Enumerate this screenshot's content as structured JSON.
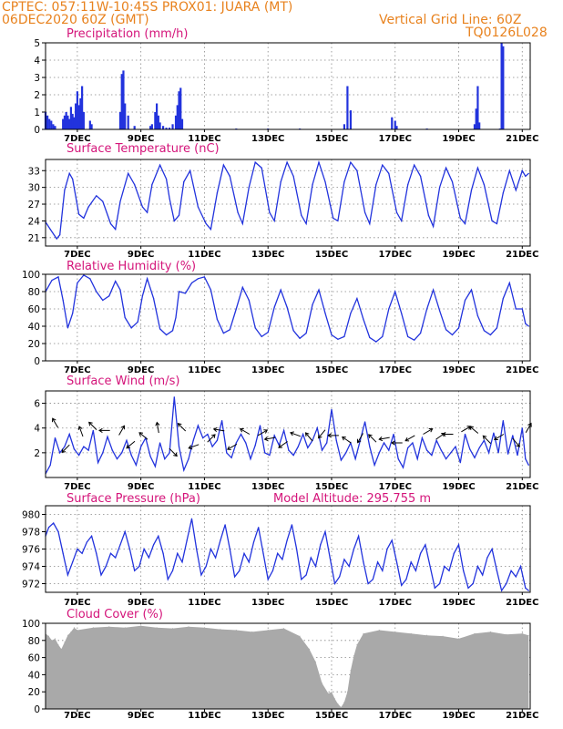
{
  "header": {
    "line1": "CPTEC:   057:11W-10:45S   PROX01: JUARA (MT)",
    "line2": "06DEC2020 60Z (GMT)",
    "grid_note": "Vertical Grid Line: 60Z",
    "model_code": "TQ0126L028"
  },
  "colors": {
    "series": "#2233dd",
    "cloud": "#a9a9a9",
    "title": "#d4147a",
    "header": "#e8821e"
  },
  "x_tick_labels": [
    "7DEC",
    "9DEC",
    "11DEC",
    "13DEC",
    "15DEC",
    "17DEC",
    "19DEC",
    "21DEC"
  ],
  "chart_data": [
    {
      "id": "precip",
      "type": "bar",
      "title": "Precipitation (mm/h)",
      "x_unit": "days since 06DEC2020 00Z",
      "xlim": [
        0,
        15.25
      ],
      "ylim": [
        0,
        5
      ],
      "yticks": [
        0,
        1,
        2,
        3,
        4,
        5
      ],
      "x": [
        0.0,
        0.06,
        0.12,
        0.18,
        0.24,
        0.3,
        0.55,
        0.6,
        0.65,
        0.7,
        0.75,
        0.8,
        0.85,
        0.9,
        0.95,
        1.0,
        1.05,
        1.1,
        1.15,
        1.2,
        1.4,
        1.45,
        2.35,
        2.4,
        2.45,
        2.5,
        2.6,
        2.8,
        3.3,
        3.35,
        3.45,
        3.5,
        3.55,
        3.6,
        3.7,
        3.8,
        3.9,
        4.0,
        4.1,
        4.15,
        4.2,
        4.25,
        4.3,
        6.0,
        7.0,
        8.0,
        9.4,
        9.5,
        9.6,
        10.9,
        11.0,
        11.05,
        12.0,
        13.5,
        13.55,
        13.6,
        13.65,
        14.3,
        14.35,
        14.4
      ],
      "values": [
        1.0,
        0.8,
        0.6,
        0.5,
        0.3,
        0.2,
        0.6,
        0.8,
        1.0,
        0.8,
        0.6,
        1.3,
        0.9,
        0.7,
        1.5,
        2.2,
        1.4,
        1.8,
        2.5,
        1.0,
        0.5,
        0.3,
        1.0,
        3.2,
        3.4,
        1.5,
        0.8,
        0.2,
        0.2,
        0.3,
        1.0,
        1.5,
        0.8,
        0.4,
        0.2,
        0.1,
        0.1,
        0.3,
        0.8,
        1.4,
        2.2,
        2.4,
        0.6,
        0.05,
        0.05,
        0.05,
        0.3,
        2.5,
        1.1,
        0.7,
        0.5,
        0.2,
        0.05,
        0.3,
        1.2,
        2.5,
        0.4,
        0.05,
        5.0,
        4.8
      ]
    },
    {
      "id": "temp",
      "type": "line",
      "title": "Surface Temperature (nC)",
      "xlim": [
        0,
        15.25
      ],
      "ylim": [
        19.5,
        35
      ],
      "yticks": [
        21,
        24,
        27,
        30,
        33
      ],
      "x": [
        0,
        0.15,
        0.35,
        0.45,
        0.6,
        0.75,
        0.85,
        1.05,
        1.2,
        1.35,
        1.6,
        1.8,
        2.05,
        2.2,
        2.35,
        2.6,
        2.8,
        3.05,
        3.2,
        3.35,
        3.6,
        3.8,
        3.9,
        4.05,
        4.2,
        4.35,
        4.55,
        4.8,
        5.05,
        5.2,
        5.4,
        5.6,
        5.8,
        6.05,
        6.2,
        6.4,
        6.6,
        6.8,
        7.05,
        7.2,
        7.4,
        7.6,
        7.8,
        8.05,
        8.2,
        8.4,
        8.6,
        8.8,
        9.05,
        9.2,
        9.4,
        9.6,
        9.8,
        10.05,
        10.2,
        10.4,
        10.6,
        10.8,
        11.05,
        11.2,
        11.4,
        11.6,
        11.8,
        12.05,
        12.2,
        12.4,
        12.6,
        12.8,
        13.05,
        13.2,
        13.4,
        13.6,
        13.8,
        14.05,
        14.2,
        14.4,
        14.6,
        14.8,
        15.0,
        15.1,
        15.2
      ],
      "values": [
        23.8,
        22.5,
        20.8,
        21.5,
        29.5,
        32.5,
        31.5,
        25.2,
        24.5,
        26.5,
        28.5,
        27.5,
        23.5,
        22.5,
        27.5,
        32.5,
        30.5,
        26.5,
        25.5,
        30.5,
        34.0,
        31.5,
        28.0,
        24.0,
        25.0,
        31.0,
        33.0,
        26.5,
        23.5,
        22.5,
        29.0,
        34.0,
        32.0,
        25.5,
        23.5,
        30.0,
        34.5,
        33.5,
        25.5,
        24.0,
        31.0,
        34.5,
        32.0,
        25.0,
        23.5,
        30.5,
        34.5,
        31.0,
        24.5,
        24.0,
        31.0,
        34.5,
        33.0,
        25.5,
        23.5,
        30.5,
        34.0,
        32.5,
        25.5,
        24.0,
        30.5,
        34.0,
        32.0,
        25.0,
        23.0,
        30.0,
        33.5,
        31.0,
        24.5,
        23.5,
        29.5,
        33.5,
        30.5,
        24.0,
        23.5,
        29.0,
        33.0,
        29.5,
        33.0,
        32.0,
        32.5
      ]
    },
    {
      "id": "rh",
      "type": "line",
      "title": "Relative Humidity (%)",
      "xlim": [
        0,
        15.25
      ],
      "ylim": [
        0,
        100
      ],
      "yticks": [
        0,
        20,
        40,
        60,
        80,
        100
      ],
      "x": [
        0,
        0.2,
        0.4,
        0.55,
        0.7,
        0.85,
        1.0,
        1.2,
        1.4,
        1.6,
        1.8,
        2.0,
        2.2,
        2.35,
        2.5,
        2.7,
        2.9,
        3.05,
        3.2,
        3.4,
        3.6,
        3.8,
        4.0,
        4.1,
        4.2,
        4.4,
        4.6,
        4.8,
        5.0,
        5.2,
        5.4,
        5.6,
        5.8,
        6.0,
        6.2,
        6.4,
        6.6,
        6.8,
        7.0,
        7.2,
        7.4,
        7.6,
        7.8,
        8.0,
        8.2,
        8.4,
        8.6,
        8.8,
        9.0,
        9.2,
        9.4,
        9.6,
        9.8,
        10.0,
        10.2,
        10.4,
        10.6,
        10.8,
        11.0,
        11.2,
        11.4,
        11.6,
        11.8,
        12.0,
        12.2,
        12.4,
        12.6,
        12.8,
        13.0,
        13.2,
        13.4,
        13.6,
        13.8,
        14.0,
        14.2,
        14.4,
        14.6,
        14.8,
        15.0,
        15.1,
        15.2
      ],
      "values": [
        80,
        93,
        97,
        70,
        38,
        55,
        90,
        99,
        95,
        80,
        70,
        75,
        92,
        82,
        50,
        38,
        45,
        75,
        95,
        72,
        37,
        30,
        35,
        50,
        80,
        78,
        90,
        95,
        97,
        82,
        48,
        32,
        36,
        60,
        85,
        70,
        38,
        28,
        33,
        62,
        82,
        62,
        35,
        26,
        32,
        65,
        82,
        55,
        30,
        25,
        28,
        55,
        72,
        48,
        27,
        22,
        28,
        60,
        80,
        55,
        28,
        24,
        32,
        60,
        82,
        58,
        36,
        30,
        38,
        70,
        82,
        52,
        35,
        30,
        38,
        72,
        90,
        60,
        60,
        43,
        40
      ]
    },
    {
      "id": "wind",
      "type": "line",
      "title": "Surface Wind (m/s)",
      "xlim": [
        0,
        15.25
      ],
      "ylim": [
        0,
        7
      ],
      "yticks": [
        2,
        4,
        6
      ],
      "x": [
        0,
        0.15,
        0.3,
        0.45,
        0.6,
        0.75,
        0.9,
        1.05,
        1.2,
        1.35,
        1.5,
        1.65,
        1.8,
        1.95,
        2.1,
        2.25,
        2.4,
        2.55,
        2.7,
        2.85,
        3.0,
        3.15,
        3.3,
        3.45,
        3.6,
        3.75,
        3.9,
        4.05,
        4.2,
        4.35,
        4.5,
        4.65,
        4.8,
        4.95,
        5.1,
        5.25,
        5.4,
        5.55,
        5.7,
        5.85,
        6.0,
        6.15,
        6.3,
        6.45,
        6.6,
        6.75,
        6.9,
        7.05,
        7.2,
        7.35,
        7.5,
        7.65,
        7.8,
        7.95,
        8.1,
        8.25,
        8.4,
        8.55,
        8.7,
        8.85,
        9.0,
        9.15,
        9.3,
        9.45,
        9.6,
        9.75,
        9.9,
        10.05,
        10.2,
        10.35,
        10.5,
        10.65,
        10.8,
        10.95,
        11.1,
        11.25,
        11.4,
        11.55,
        11.7,
        11.85,
        12.0,
        12.15,
        12.3,
        12.45,
        12.6,
        12.75,
        12.9,
        13.05,
        13.2,
        13.35,
        13.5,
        13.65,
        13.8,
        13.95,
        14.1,
        14.25,
        14.4,
        14.55,
        14.7,
        14.85,
        15.0,
        15.1,
        15.2
      ],
      "values": [
        0.3,
        1.0,
        3.2,
        2.0,
        2.5,
        3.5,
        2.3,
        1.8,
        2.5,
        2.2,
        3.8,
        1.2,
        2.0,
        3.3,
        2.2,
        1.5,
        2.0,
        3.0,
        1.8,
        1.0,
        2.5,
        3.2,
        1.7,
        0.9,
        2.8,
        1.5,
        2.0,
        6.5,
        2.5,
        0.6,
        1.5,
        3.0,
        4.2,
        3.2,
        3.5,
        2.5,
        3.0,
        4.6,
        2.0,
        1.6,
        2.8,
        3.5,
        2.8,
        1.5,
        2.6,
        4.2,
        2.0,
        1.8,
        3.4,
        2.6,
        3.8,
        2.2,
        1.8,
        2.5,
        3.5,
        2.4,
        3.0,
        4.0,
        2.2,
        2.8,
        5.5,
        3.0,
        1.4,
        2.0,
        2.8,
        1.5,
        3.0,
        4.5,
        2.5,
        1.0,
        2.0,
        2.8,
        2.2,
        3.5,
        1.5,
        0.8,
        2.4,
        2.8,
        1.5,
        3.2,
        2.2,
        1.8,
        3.0,
        2.2,
        1.5,
        2.0,
        2.5,
        1.2,
        3.5,
        2.3,
        1.6,
        2.4,
        3.0,
        2.0,
        3.6,
        2.0,
        4.6,
        1.9,
        3.4,
        1.8,
        4.0,
        1.5,
        1.0
      ]
    },
    {
      "id": "pressure",
      "type": "line",
      "title": "Surface Pressure (hPa)",
      "annotation": "Model Altitude: 295.755 m",
      "xlim": [
        0,
        15.25
      ],
      "ylim": [
        971,
        981
      ],
      "yticks": [
        972,
        974,
        976,
        978,
        980
      ],
      "x": [
        0,
        0.1,
        0.25,
        0.4,
        0.55,
        0.7,
        0.85,
        1.0,
        1.15,
        1.3,
        1.45,
        1.6,
        1.75,
        1.9,
        2.05,
        2.2,
        2.35,
        2.5,
        2.65,
        2.8,
        2.95,
        3.1,
        3.25,
        3.4,
        3.55,
        3.7,
        3.85,
        4.0,
        4.15,
        4.3,
        4.45,
        4.6,
        4.75,
        4.9,
        5.05,
        5.2,
        5.35,
        5.5,
        5.65,
        5.8,
        5.95,
        6.1,
        6.25,
        6.4,
        6.55,
        6.7,
        6.85,
        7.0,
        7.15,
        7.3,
        7.45,
        7.6,
        7.75,
        7.9,
        8.05,
        8.2,
        8.35,
        8.5,
        8.65,
        8.8,
        8.95,
        9.1,
        9.25,
        9.4,
        9.55,
        9.7,
        9.85,
        10.0,
        10.15,
        10.3,
        10.45,
        10.6,
        10.75,
        10.9,
        11.05,
        11.2,
        11.35,
        11.5,
        11.65,
        11.8,
        11.95,
        12.1,
        12.25,
        12.4,
        12.55,
        12.7,
        12.85,
        13.0,
        13.15,
        13.3,
        13.45,
        13.6,
        13.75,
        13.9,
        14.05,
        14.2,
        14.35,
        14.5,
        14.65,
        14.8,
        14.95,
        15.1,
        15.2
      ],
      "values": [
        977.5,
        978.5,
        979.0,
        978.0,
        975.5,
        973.0,
        974.5,
        976.0,
        975.5,
        976.8,
        977.5,
        975.5,
        973.0,
        974.0,
        975.5,
        975.0,
        976.5,
        978.0,
        976.0,
        973.5,
        974.0,
        976.0,
        975.0,
        976.5,
        977.5,
        975.5,
        972.5,
        973.5,
        975.5,
        974.5,
        977.0,
        979.5,
        976.0,
        973.0,
        974.0,
        976.0,
        975.0,
        977.0,
        978.8,
        976.0,
        972.8,
        973.5,
        975.5,
        974.5,
        976.8,
        978.5,
        975.5,
        972.5,
        973.5,
        975.5,
        974.8,
        977.0,
        978.8,
        976.0,
        972.5,
        973.0,
        975.0,
        974.0,
        976.5,
        978.0,
        975.0,
        972.0,
        972.8,
        974.8,
        974.0,
        976.0,
        977.5,
        974.5,
        972.0,
        972.5,
        974.5,
        973.5,
        976.0,
        977.0,
        974.5,
        971.8,
        972.5,
        974.5,
        973.5,
        975.5,
        976.5,
        974.0,
        971.5,
        972.0,
        974.0,
        973.5,
        975.5,
        976.5,
        973.5,
        971.5,
        972.0,
        974.0,
        973.0,
        975.0,
        976.0,
        973.5,
        971.2,
        972.0,
        973.5,
        972.8,
        974.0,
        971.5,
        971.2
      ]
    },
    {
      "id": "cloud",
      "type": "area",
      "title": "Cloud Cover (%)",
      "xlim": [
        0,
        15.25
      ],
      "ylim": [
        0,
        100
      ],
      "yticks": [
        0,
        20,
        40,
        60,
        80,
        100
      ],
      "x": [
        0,
        0.1,
        0.2,
        0.3,
        0.4,
        0.5,
        0.6,
        0.7,
        0.8,
        0.9,
        1.0,
        1.5,
        2.0,
        2.5,
        3.0,
        3.5,
        4.0,
        4.5,
        5.0,
        5.5,
        6.0,
        6.5,
        7.0,
        7.5,
        8.0,
        8.3,
        8.5,
        8.7,
        8.9,
        9.0,
        9.1,
        9.2,
        9.3,
        9.4,
        9.5,
        9.6,
        9.7,
        9.8,
        10.0,
        10.5,
        11.0,
        11.5,
        12.0,
        12.5,
        13.0,
        13.5,
        14.0,
        14.5,
        15.0,
        15.2
      ],
      "values": [
        88,
        85,
        80,
        82,
        75,
        70,
        78,
        86,
        90,
        95,
        92,
        95,
        96,
        95,
        97,
        95,
        94,
        96,
        95,
        93,
        92,
        90,
        92,
        94,
        85,
        70,
        55,
        30,
        18,
        20,
        12,
        6,
        2,
        8,
        20,
        45,
        62,
        75,
        88,
        92,
        90,
        88,
        86,
        85,
        82,
        88,
        90,
        87,
        88,
        86
      ]
    }
  ],
  "wind_vectors": {
    "x": [
      0.35,
      0.7,
      1.15,
      1.55,
      1.95,
      2.35,
      2.75,
      3.15,
      3.55,
      3.95,
      4.35,
      4.75,
      5.15,
      5.55,
      5.95,
      6.35,
      6.75,
      7.15,
      7.55,
      7.95,
      8.35,
      8.75,
      9.15,
      9.55,
      9.95,
      10.35,
      10.75,
      11.15,
      11.55,
      11.95,
      12.35,
      12.75,
      13.15,
      13.55,
      13.95,
      14.35,
      14.75,
      15.15
    ],
    "level": [
      4.2,
      2.5,
      3.5,
      4.0,
      3.8,
      3.6,
      2.8,
      3.2,
      3.8,
      2.2,
      3.9,
      2.6,
      3.0,
      3.8,
      2.6,
      3.6,
      3.5,
      3.2,
      2.8,
      3.4,
      3.1,
      3.7,
      3.4,
      2.9,
      3.4,
      3.0,
      3.2,
      2.8,
      3.3,
      3.6,
      3.2,
      3.5,
      3.8,
      3.7,
      2.9,
      3.4,
      3.0,
      3.8
    ],
    "angle_deg": [
      120,
      225,
      110,
      135,
      180,
      60,
      220,
      140,
      100,
      315,
      135,
      200,
      45,
      170,
      210,
      150,
      30,
      190,
      215,
      160,
      130,
      230,
      180,
      145,
      240,
      135,
      190,
      180,
      210,
      30,
      35,
      180,
      30,
      140,
      135,
      210,
      310,
      60
    ]
  }
}
